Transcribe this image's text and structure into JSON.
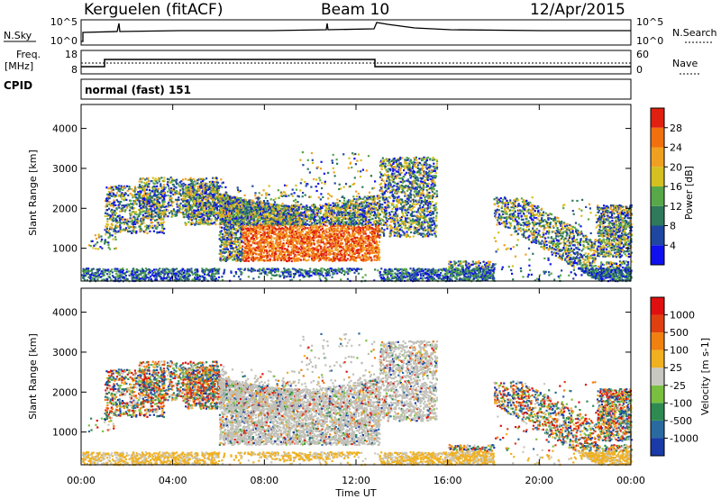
{
  "header": {
    "station": "Kerguelen (fitACF)",
    "beam": "Beam 10",
    "date": "12/Apr/2015"
  },
  "noise_panel": {
    "left_label": "N.Sky",
    "right_label": "N.Search",
    "y_ticks_left": [
      "10^5",
      "10^0"
    ],
    "y_ticks_right": [
      "10^5",
      "10^0"
    ]
  },
  "freq_panel": {
    "left_label_line1": "Freq.",
    "left_label_line2": "[MHz]",
    "right_label": "Nave",
    "y_ticks_left": [
      "18",
      "8"
    ],
    "y_ticks_right": [
      "60",
      "0"
    ]
  },
  "cpid": {
    "label": "CPID",
    "value": "normal (fast) 151"
  },
  "chart_data": [
    {
      "type": "heatmap",
      "name": "power",
      "ylabel": "Slant Range [km]",
      "xlabel": "Time UT",
      "ylim": [
        180,
        4600
      ],
      "y_ticks": [
        "1000",
        "2000",
        "3000",
        "4000"
      ],
      "x_ticks": [
        "00:00",
        "04:00",
        "08:00",
        "12:00",
        "16:00",
        "20:00",
        "00:00"
      ],
      "colorbar": {
        "label": "Power [dB]",
        "ticks": [
          "4",
          "8",
          "12",
          "16",
          "20",
          "24",
          "28"
        ],
        "colors": [
          "#1010ee",
          "#1f46a0",
          "#2e7a5a",
          "#58a84a",
          "#d4c020",
          "#f0a020",
          "#f07010",
          "#e02010"
        ]
      }
    },
    {
      "type": "heatmap",
      "name": "velocity",
      "ylabel": "Slant Range [km]",
      "xlabel": "Time UT",
      "ylim": [
        180,
        4600
      ],
      "y_ticks": [
        "1000",
        "2000",
        "3000",
        "4000"
      ],
      "x_ticks": [
        "00:00",
        "04:00",
        "08:00",
        "12:00",
        "16:00",
        "20:00",
        "00:00"
      ],
      "colorbar": {
        "label": "Velocity [m s-1]",
        "ticks": [
          "1000",
          "500",
          "100",
          "25",
          "-25",
          "-100",
          "-500",
          "-1000"
        ],
        "colors": [
          "#1a3aa8",
          "#2a6aa0",
          "#2e8a50",
          "#7ac040",
          "#c8c8c0",
          "#f0b020",
          "#f08010",
          "#e04010",
          "#e01010"
        ]
      }
    }
  ],
  "colors": {
    "ground_scatter": "#c0c0b8"
  }
}
